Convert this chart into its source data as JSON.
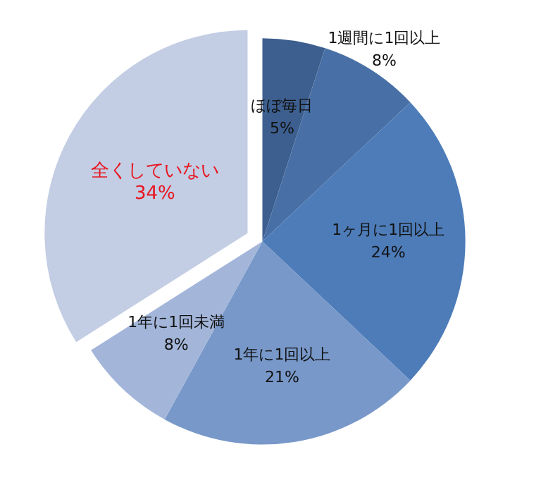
{
  "chart_data": {
    "type": "pie",
    "categories": [
      "ほぼ毎日",
      "1週間に1回以上",
      "1ヶ月に1回以上",
      "1年に1回以上",
      "1年に1回未満",
      "全くしていない"
    ],
    "values": [
      5,
      8,
      24,
      21,
      8,
      34
    ],
    "value_labels": [
      "5%",
      "8%",
      "24%",
      "21%",
      "8%",
      "34%"
    ],
    "colors": [
      "#3d5f8f",
      "#4870a6",
      "#4d7cb8",
      "#7898c9",
      "#a3b6da",
      "#c3cde3"
    ]
  }
}
